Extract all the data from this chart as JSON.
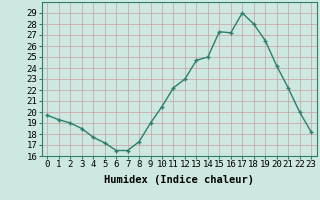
{
  "x": [
    0,
    1,
    2,
    3,
    4,
    5,
    6,
    7,
    8,
    9,
    10,
    11,
    12,
    13,
    14,
    15,
    16,
    17,
    18,
    19,
    20,
    21,
    22,
    23
  ],
  "y": [
    19.7,
    19.3,
    19.0,
    18.5,
    17.7,
    17.2,
    16.5,
    16.5,
    17.3,
    19.0,
    20.5,
    22.2,
    23.0,
    24.7,
    25.0,
    27.3,
    27.2,
    29.0,
    28.0,
    26.5,
    24.2,
    22.2,
    20.0,
    18.2
  ],
  "xlabel": "Humidex (Indice chaleur)",
  "ylim": [
    16,
    30
  ],
  "xlim": [
    -0.5,
    23.5
  ],
  "yticks": [
    16,
    17,
    18,
    19,
    20,
    21,
    22,
    23,
    24,
    25,
    26,
    27,
    28,
    29
  ],
  "xticks": [
    0,
    1,
    2,
    3,
    4,
    5,
    6,
    7,
    8,
    9,
    10,
    11,
    12,
    13,
    14,
    15,
    16,
    17,
    18,
    19,
    20,
    21,
    22,
    23
  ],
  "line_color": "#2e7d6e",
  "marker_color": "#2e7d6e",
  "bg_color": "#cce8e0",
  "grid_color": "#b8d8d0",
  "tick_label_fontsize": 6.5,
  "xlabel_fontsize": 7.5
}
